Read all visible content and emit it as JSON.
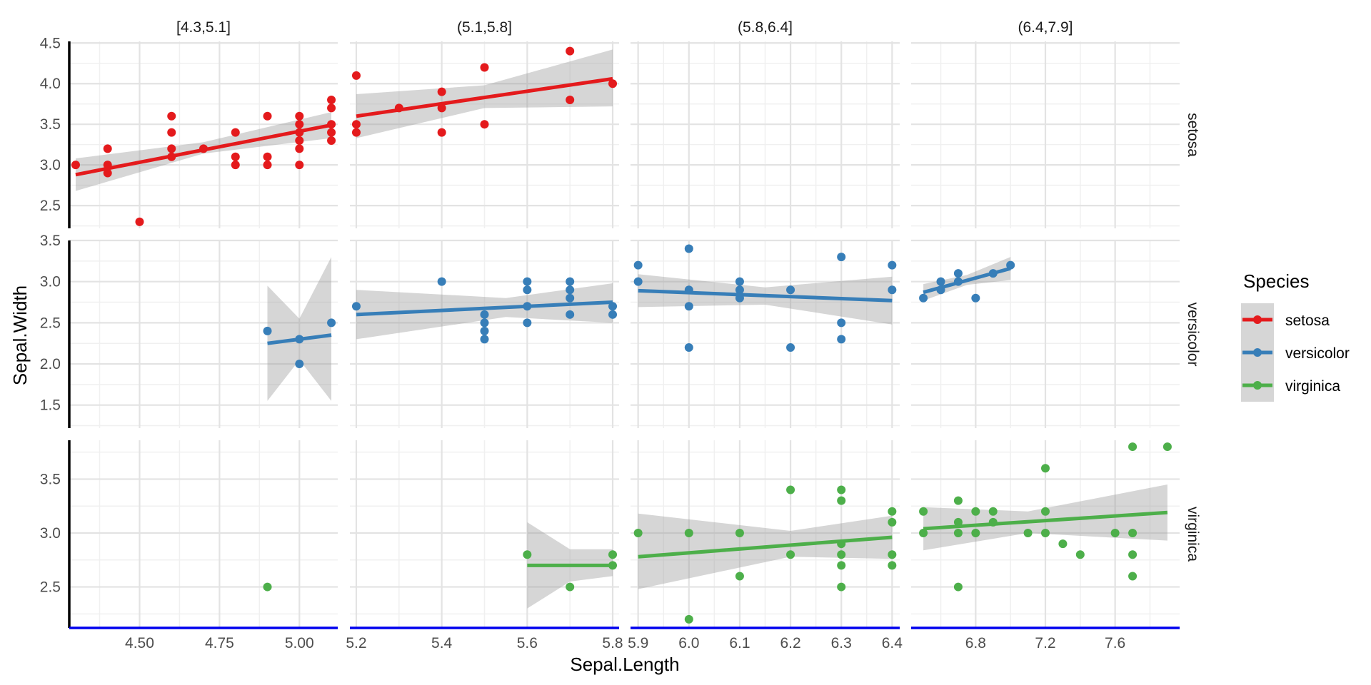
{
  "chart_data": {
    "type": "scatter",
    "xlabel": "Sepal.Length",
    "ylabel": "Sepal.Width",
    "legend": {
      "title": "Species",
      "position": "right",
      "entries": [
        {
          "name": "setosa",
          "color": "#E41A1C"
        },
        {
          "name": "versicolor",
          "color": "#377EB8"
        },
        {
          "name": "virginica",
          "color": "#4DAF4A"
        }
      ]
    },
    "col_strips": [
      "[4.3,5.1]",
      "(5.1,5.8]",
      "(5.8,6.4]",
      "(6.4,7.9]"
    ],
    "row_strips": [
      "setosa",
      "versicolor",
      "virginica"
    ],
    "grid": true,
    "smooth": "lm with 95% confidence band",
    "columns": [
      {
        "xlim": [
          4.28,
          5.12
        ],
        "ticks": [
          4.5,
          4.75,
          5.0
        ],
        "tick_labels": [
          "4.50",
          "4.75",
          "5.00"
        ]
      },
      {
        "xlim": [
          5.185,
          5.815
        ],
        "ticks": [
          5.2,
          5.4,
          5.6,
          5.8
        ],
        "tick_labels": [
          "5.2",
          "5.4",
          "5.6",
          "5.8"
        ]
      },
      {
        "xlim": [
          5.885,
          6.415
        ],
        "ticks": [
          5.9,
          6.0,
          6.1,
          6.2,
          6.3,
          6.4
        ],
        "tick_labels": [
          "5.9",
          "6.0",
          "6.1",
          "6.2",
          "6.3",
          "6.4"
        ]
      },
      {
        "xlim": [
          6.43,
          7.97
        ],
        "ticks": [
          6.8,
          7.2,
          7.6
        ],
        "tick_labels": [
          "6.8",
          "7.2",
          "7.6"
        ]
      }
    ],
    "rows": [
      {
        "ylim": [
          2.22,
          4.52
        ],
        "ticks": [
          2.5,
          3.0,
          3.5,
          4.0,
          4.5
        ],
        "tick_labels": [
          "2.5",
          "3.0",
          "3.5",
          "4.0",
          "4.5"
        ]
      },
      {
        "ylim": [
          1.22,
          3.5
        ],
        "ticks": [
          1.5,
          2.0,
          2.5,
          3.0,
          3.5
        ],
        "tick_labels": [
          "1.5",
          "2.0",
          "2.5",
          "3.0",
          "3.5"
        ]
      },
      {
        "ylim": [
          2.12,
          3.86
        ],
        "ticks": [
          2.5,
          3.0,
          3.5
        ],
        "tick_labels": [
          "2.5",
          "3.0",
          "3.5"
        ]
      }
    ],
    "panels": [
      {
        "row": 0,
        "col": 0,
        "species": "setosa",
        "points": [
          [
            4.3,
            3.0
          ],
          [
            4.4,
            2.9
          ],
          [
            4.4,
            3.0
          ],
          [
            4.4,
            3.2
          ],
          [
            4.5,
            2.3
          ],
          [
            4.6,
            3.1
          ],
          [
            4.6,
            3.2
          ],
          [
            4.6,
            3.4
          ],
          [
            4.6,
            3.6
          ],
          [
            4.7,
            3.2
          ],
          [
            4.8,
            3.0
          ],
          [
            4.8,
            3.1
          ],
          [
            4.8,
            3.4
          ],
          [
            4.9,
            3.0
          ],
          [
            4.9,
            3.1
          ],
          [
            4.9,
            3.6
          ],
          [
            5.0,
            3.0
          ],
          [
            5.0,
            3.2
          ],
          [
            5.0,
            3.3
          ],
          [
            5.0,
            3.4
          ],
          [
            5.0,
            3.5
          ],
          [
            5.0,
            3.6
          ],
          [
            5.1,
            3.3
          ],
          [
            5.1,
            3.4
          ],
          [
            5.1,
            3.5
          ],
          [
            5.1,
            3.7
          ],
          [
            5.1,
            3.8
          ]
        ],
        "fit": {
          "x": [
            4.3,
            5.1
          ],
          "y": [
            2.88,
            3.49
          ]
        },
        "band": {
          "x": [
            4.3,
            4.7,
            5.1
          ],
          "lo": [
            2.68,
            3.14,
            3.33
          ],
          "hi": [
            3.08,
            3.28,
            3.65
          ]
        }
      },
      {
        "row": 0,
        "col": 1,
        "species": "setosa",
        "points": [
          [
            5.2,
            3.4
          ],
          [
            5.2,
            3.5
          ],
          [
            5.2,
            4.1
          ],
          [
            5.3,
            3.7
          ],
          [
            5.4,
            3.4
          ],
          [
            5.4,
            3.7
          ],
          [
            5.4,
            3.9
          ],
          [
            5.5,
            3.5
          ],
          [
            5.5,
            4.2
          ],
          [
            5.7,
            3.8
          ],
          [
            5.7,
            4.4
          ],
          [
            5.8,
            4.0
          ]
        ],
        "fit": {
          "x": [
            5.2,
            5.8
          ],
          "y": [
            3.6,
            4.06
          ]
        },
        "band": {
          "x": [
            5.2,
            5.5,
            5.8
          ],
          "lo": [
            3.33,
            3.7,
            3.72
          ],
          "hi": [
            3.87,
            3.98,
            4.42
          ]
        }
      },
      {
        "row": 0,
        "col": 2,
        "species": "setosa",
        "points": []
      },
      {
        "row": 0,
        "col": 3,
        "species": "setosa",
        "points": []
      },
      {
        "row": 1,
        "col": 0,
        "species": "versicolor",
        "points": [
          [
            4.9,
            2.4
          ],
          [
            5.0,
            2.0
          ],
          [
            5.0,
            2.3
          ],
          [
            5.1,
            2.5
          ]
        ],
        "fit": {
          "x": [
            4.9,
            5.1
          ],
          "y": [
            2.25,
            2.35
          ]
        },
        "band": {
          "x": [
            4.9,
            5.0,
            5.1
          ],
          "lo": [
            1.55,
            2.05,
            1.55
          ],
          "hi": [
            2.95,
            2.55,
            3.3
          ]
        }
      },
      {
        "row": 1,
        "col": 1,
        "species": "versicolor",
        "points": [
          [
            5.2,
            2.7
          ],
          [
            5.4,
            3.0
          ],
          [
            5.5,
            2.3
          ],
          [
            5.5,
            2.4
          ],
          [
            5.5,
            2.5
          ],
          [
            5.5,
            2.6
          ],
          [
            5.6,
            2.5
          ],
          [
            5.6,
            2.7
          ],
          [
            5.6,
            2.9
          ],
          [
            5.6,
            3.0
          ],
          [
            5.7,
            2.6
          ],
          [
            5.7,
            2.8
          ],
          [
            5.7,
            2.9
          ],
          [
            5.7,
            3.0
          ],
          [
            5.8,
            2.6
          ],
          [
            5.8,
            2.7
          ]
        ],
        "fit": {
          "x": [
            5.2,
            5.8
          ],
          "y": [
            2.6,
            2.75
          ]
        },
        "band": {
          "x": [
            5.2,
            5.55,
            5.8
          ],
          "lo": [
            2.3,
            2.57,
            2.5
          ],
          "hi": [
            2.9,
            2.8,
            2.98
          ]
        }
      },
      {
        "row": 1,
        "col": 2,
        "species": "versicolor",
        "points": [
          [
            5.9,
            3.0
          ],
          [
            5.9,
            3.2
          ],
          [
            6.0,
            2.2
          ],
          [
            6.0,
            2.7
          ],
          [
            6.0,
            2.9
          ],
          [
            6.0,
            3.4
          ],
          [
            6.1,
            2.8
          ],
          [
            6.1,
            2.9
          ],
          [
            6.1,
            3.0
          ],
          [
            6.2,
            2.2
          ],
          [
            6.2,
            2.9
          ],
          [
            6.3,
            2.3
          ],
          [
            6.3,
            2.5
          ],
          [
            6.3,
            3.3
          ],
          [
            6.4,
            2.9
          ],
          [
            6.4,
            3.2
          ]
        ],
        "fit": {
          "x": [
            5.9,
            6.4
          ],
          "y": [
            2.89,
            2.77
          ]
        },
        "band": {
          "x": [
            5.9,
            6.15,
            6.4
          ],
          "lo": [
            2.69,
            2.72,
            2.48
          ],
          "hi": [
            3.09,
            2.93,
            3.06
          ]
        }
      },
      {
        "row": 1,
        "col": 3,
        "species": "versicolor",
        "points": [
          [
            6.5,
            2.8
          ],
          [
            6.6,
            2.9
          ],
          [
            6.6,
            3.0
          ],
          [
            6.7,
            3.0
          ],
          [
            6.7,
            3.1
          ],
          [
            6.8,
            2.8
          ],
          [
            6.9,
            3.1
          ],
          [
            7.0,
            3.2
          ]
        ],
        "fit": {
          "x": [
            6.5,
            7.0
          ],
          "y": [
            2.87,
            3.16
          ]
        },
        "band": {
          "x": [
            6.5,
            6.75,
            7.0
          ],
          "lo": [
            2.77,
            2.96,
            3.02
          ],
          "hi": [
            2.97,
            3.08,
            3.3
          ]
        }
      },
      {
        "row": 2,
        "col": 0,
        "species": "virginica",
        "points": [
          [
            4.9,
            2.5
          ]
        ]
      },
      {
        "row": 2,
        "col": 1,
        "species": "virginica",
        "points": [
          [
            5.6,
            2.8
          ],
          [
            5.7,
            2.5
          ],
          [
            5.8,
            2.7
          ],
          [
            5.8,
            2.8
          ]
        ],
        "fit": {
          "x": [
            5.6,
            5.8
          ],
          "y": [
            2.7,
            2.7
          ]
        },
        "band": {
          "x": [
            5.6,
            5.7,
            5.8
          ],
          "lo": [
            2.3,
            2.55,
            2.6
          ],
          "hi": [
            3.1,
            2.85,
            2.85
          ]
        }
      },
      {
        "row": 2,
        "col": 2,
        "species": "virginica",
        "points": [
          [
            5.9,
            3.0
          ],
          [
            6.0,
            2.2
          ],
          [
            6.0,
            3.0
          ],
          [
            6.1,
            2.6
          ],
          [
            6.1,
            3.0
          ],
          [
            6.2,
            2.8
          ],
          [
            6.2,
            3.4
          ],
          [
            6.3,
            2.5
          ],
          [
            6.3,
            2.7
          ],
          [
            6.3,
            2.8
          ],
          [
            6.3,
            2.9
          ],
          [
            6.3,
            3.3
          ],
          [
            6.3,
            3.4
          ],
          [
            6.4,
            2.7
          ],
          [
            6.4,
            2.8
          ],
          [
            6.4,
            3.1
          ],
          [
            6.4,
            3.2
          ]
        ],
        "fit": {
          "x": [
            5.9,
            6.4
          ],
          "y": [
            2.78,
            2.96
          ]
        },
        "band": {
          "x": [
            5.9,
            6.2,
            6.4
          ],
          "lo": [
            2.48,
            2.78,
            2.76
          ],
          "hi": [
            3.18,
            3.02,
            3.16
          ]
        }
      },
      {
        "row": 2,
        "col": 3,
        "species": "virginica",
        "points": [
          [
            6.5,
            3.0
          ],
          [
            6.5,
            3.2
          ],
          [
            6.7,
            2.5
          ],
          [
            6.7,
            3.0
          ],
          [
            6.7,
            3.1
          ],
          [
            6.7,
            3.3
          ],
          [
            6.8,
            3.0
          ],
          [
            6.8,
            3.2
          ],
          [
            6.9,
            3.1
          ],
          [
            6.9,
            3.2
          ],
          [
            7.1,
            3.0
          ],
          [
            7.2,
            3.0
          ],
          [
            7.2,
            3.2
          ],
          [
            7.2,
            3.6
          ],
          [
            7.3,
            2.9
          ],
          [
            7.4,
            2.8
          ],
          [
            7.6,
            3.0
          ],
          [
            7.7,
            2.6
          ],
          [
            7.7,
            2.8
          ],
          [
            7.7,
            3.0
          ],
          [
            7.7,
            3.8
          ],
          [
            7.9,
            3.8
          ]
        ],
        "fit": {
          "x": [
            6.5,
            7.9
          ],
          "y": [
            3.04,
            3.19
          ]
        },
        "band": {
          "x": [
            6.5,
            7.1,
            7.9
          ],
          "lo": [
            2.84,
            3.0,
            2.93
          ],
          "hi": [
            3.24,
            3.2,
            3.45
          ]
        }
      }
    ]
  }
}
